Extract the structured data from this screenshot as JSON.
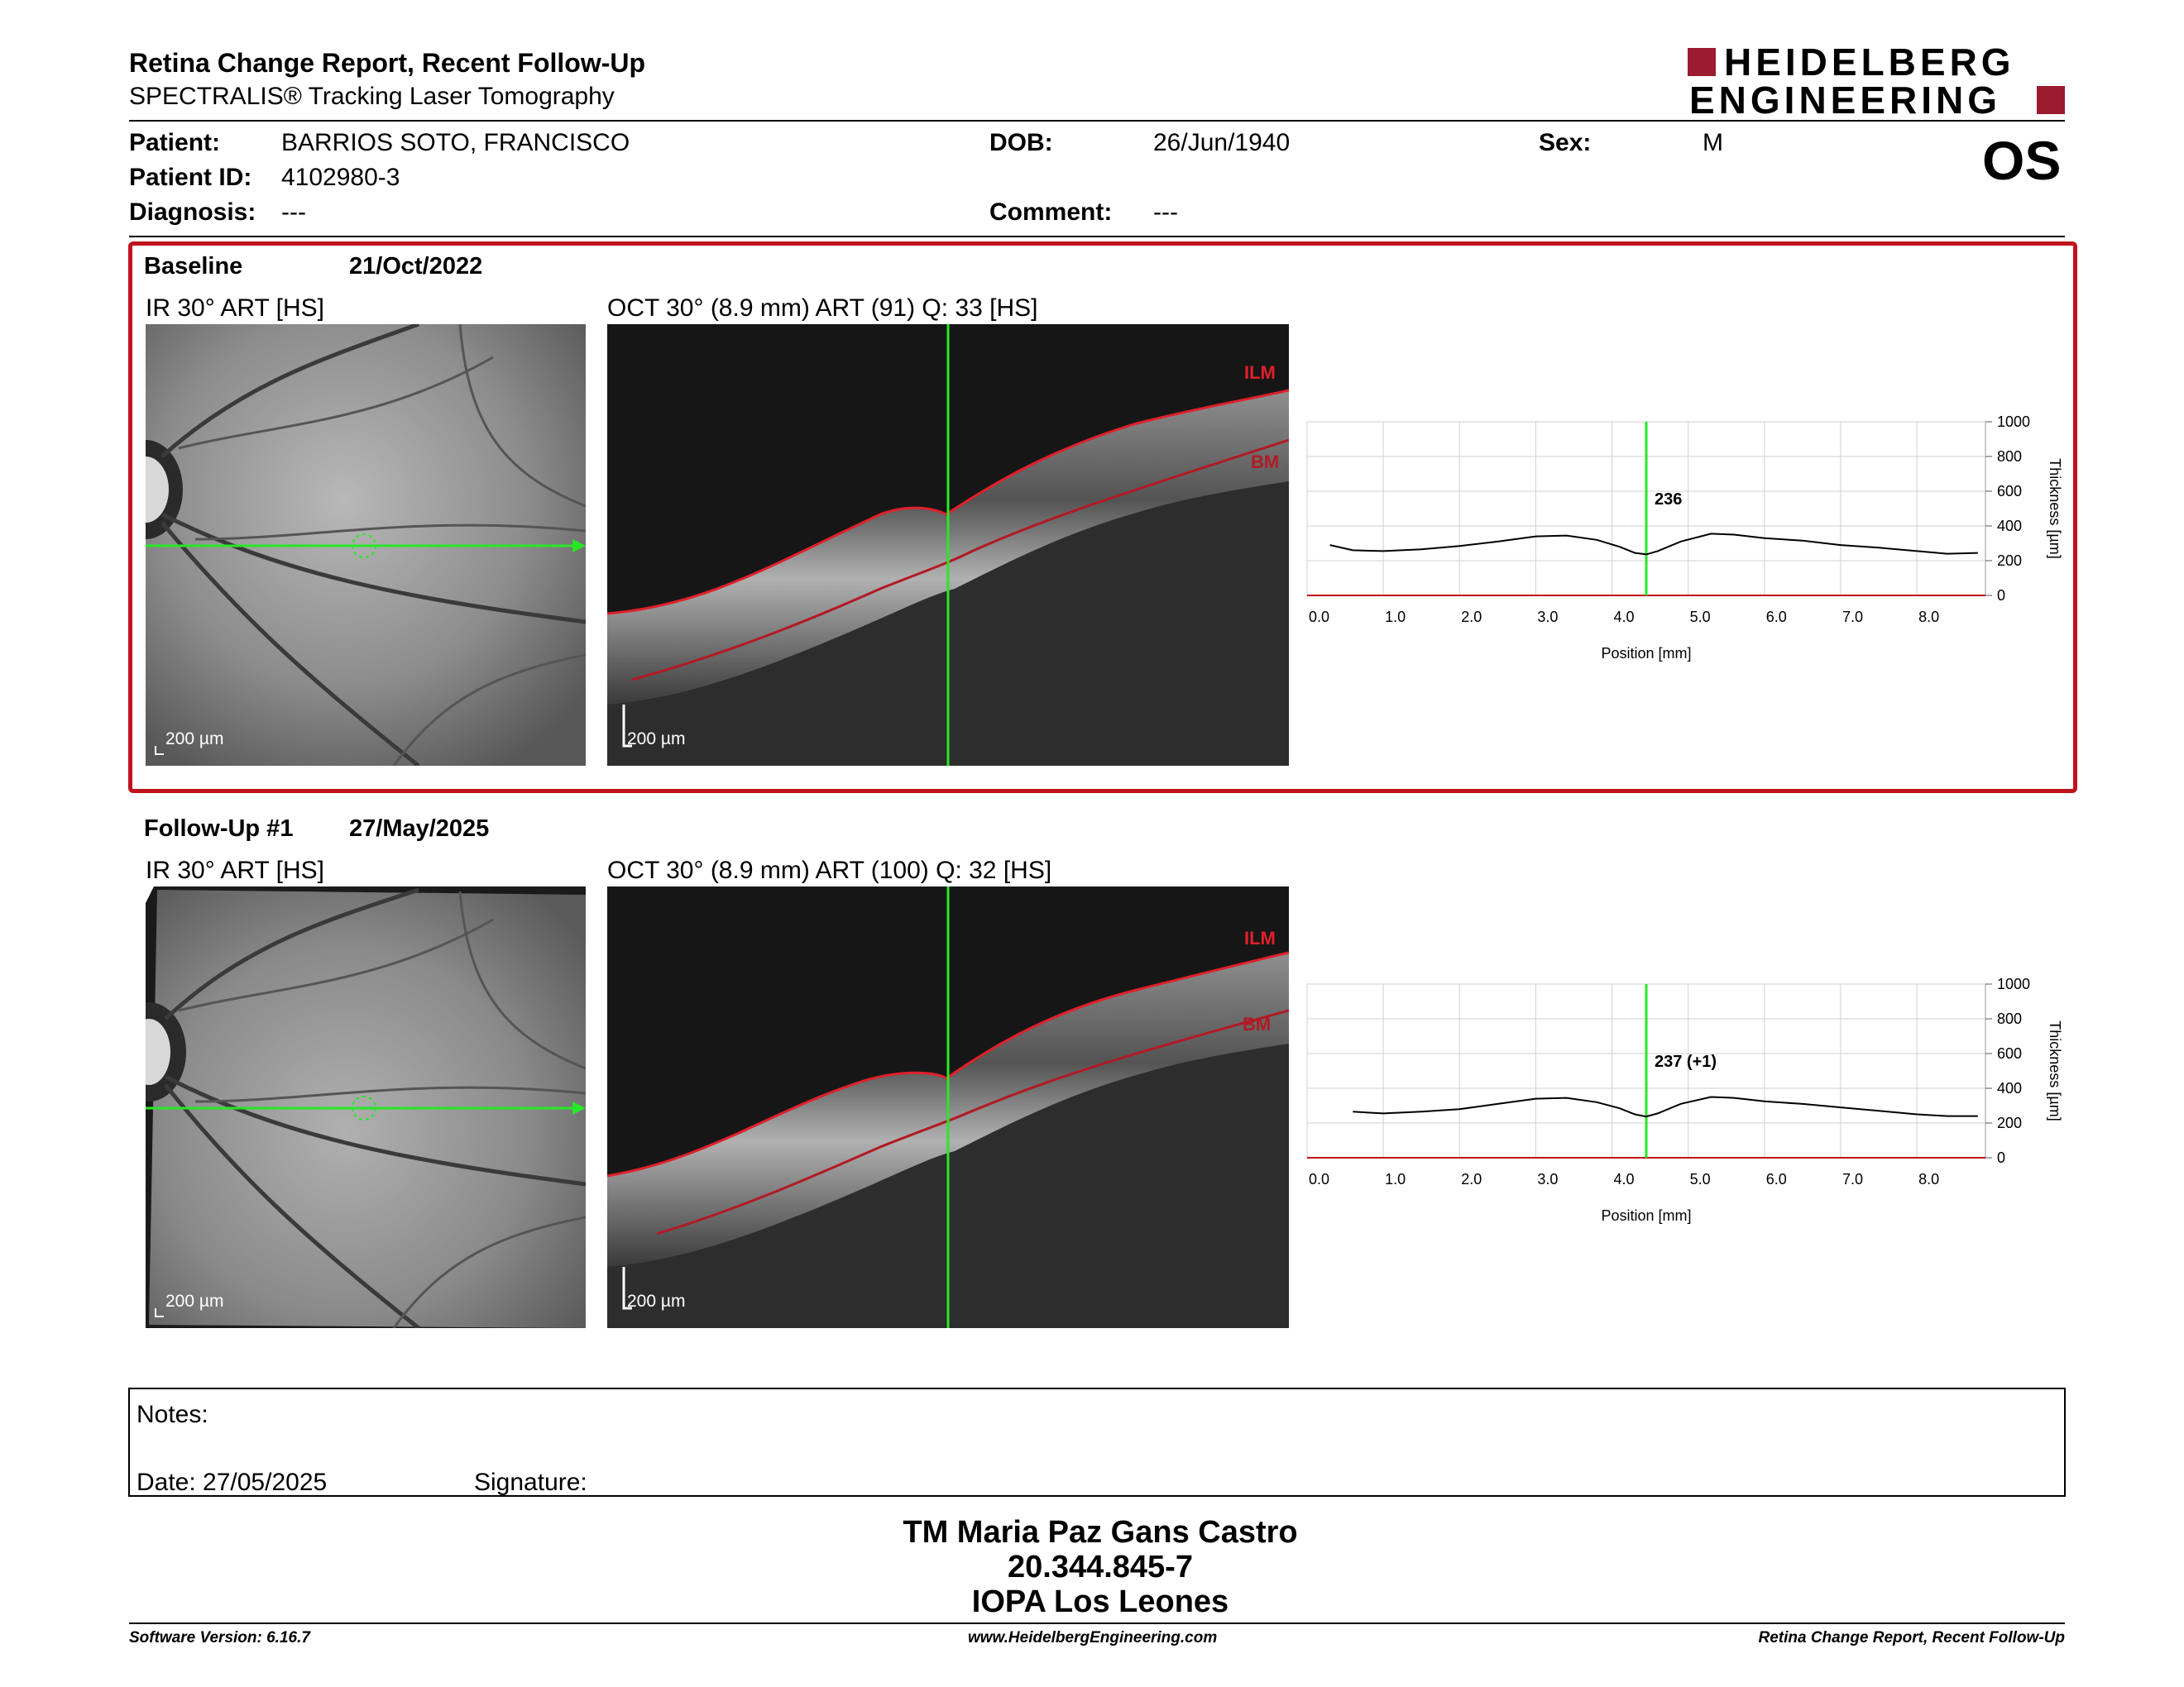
{
  "report": {
    "title": "Retina Change Report, Recent Follow-Up",
    "subtitle": "SPECTRALIS® Tracking Laser Tomography"
  },
  "logo": {
    "line1": "HEIDELBERG",
    "line2": "ENGINEERING",
    "accent": "#9b1b30"
  },
  "patient": {
    "patient_label": "Patient:",
    "patient_value": "BARRIOS SOTO, FRANCISCO",
    "id_label": "Patient ID:",
    "id_value": "4102980-3",
    "diagnosis_label": "Diagnosis:",
    "diagnosis_value": "---",
    "dob_label": "DOB:",
    "dob_value": "26/Jun/1940",
    "comment_label": "Comment:",
    "comment_value": "---",
    "sex_label": "Sex:",
    "sex_value": "M",
    "eye": "OS"
  },
  "baseline": {
    "heading": "Baseline",
    "date": "21/Oct/2022",
    "ir_caption": "IR 30° ART [HS]",
    "oct_caption": "OCT 30° (8.9 mm) ART (91) Q: 33 [HS]",
    "scale": "200 µm",
    "ilm": "ILM",
    "bm": "BM",
    "marker_value": "236"
  },
  "followup": {
    "heading": "Follow-Up #1",
    "date": "27/May/2025",
    "ir_caption": "IR 30° ART [HS]",
    "oct_caption": "OCT 30° (8.9 mm) ART (100) Q: 32 [HS]",
    "scale": "200 µm",
    "ilm": "ILM",
    "bm": "BM",
    "marker_value": "237 (+1)"
  },
  "chart_data": [
    {
      "type": "line",
      "xlabel": "Position [mm]",
      "ylabel": "Thickness [µm]",
      "xlim": [
        0,
        8.9
      ],
      "ylim": [
        0,
        1000
      ],
      "xticks": [
        "0.0",
        "1.0",
        "2.0",
        "3.0",
        "4.0",
        "5.0",
        "6.0",
        "7.0",
        "8.0"
      ],
      "yticks": [
        "0",
        "200",
        "400",
        "600",
        "800",
        "1000"
      ],
      "grid": true,
      "marker_x": 4.45,
      "marker_label": "236",
      "x": [
        0.3,
        0.6,
        1.0,
        1.5,
        2.0,
        2.5,
        3.0,
        3.4,
        3.8,
        4.1,
        4.3,
        4.45,
        4.6,
        4.9,
        5.3,
        5.6,
        6.0,
        6.5,
        7.0,
        7.5,
        8.0,
        8.4,
        8.8
      ],
      "y": [
        290,
        260,
        255,
        265,
        285,
        310,
        340,
        345,
        320,
        280,
        245,
        236,
        255,
        310,
        355,
        350,
        330,
        315,
        290,
        275,
        255,
        240,
        245
      ]
    },
    {
      "type": "line",
      "xlabel": "Position [mm]",
      "ylabel": "Thickness [µm]",
      "xlim": [
        0,
        8.9
      ],
      "ylim": [
        0,
        1000
      ],
      "xticks": [
        "0.0",
        "1.0",
        "2.0",
        "3.0",
        "4.0",
        "5.0",
        "6.0",
        "7.0",
        "8.0"
      ],
      "yticks": [
        "0",
        "200",
        "400",
        "600",
        "800",
        "1000"
      ],
      "grid": true,
      "marker_x": 4.45,
      "marker_label": "237 (+1)",
      "x": [
        0.6,
        1.0,
        1.5,
        2.0,
        2.5,
        3.0,
        3.4,
        3.8,
        4.1,
        4.3,
        4.45,
        4.6,
        4.9,
        5.3,
        5.6,
        6.0,
        6.5,
        7.0,
        7.5,
        8.0,
        8.4,
        8.8
      ],
      "y": [
        265,
        255,
        265,
        280,
        310,
        340,
        345,
        320,
        285,
        250,
        237,
        255,
        310,
        350,
        345,
        325,
        310,
        290,
        270,
        250,
        240,
        240
      ]
    }
  ],
  "notes": {
    "label": "Notes:",
    "date_label": "Date: 27/05/2025",
    "signature_label": "Signature:"
  },
  "signer": {
    "name": "TM Maria Paz Gans Castro",
    "id": "20.344.845-7",
    "org": "IOPA Los Leones"
  },
  "footer": {
    "left": "Software Version: 6.16.7",
    "center": "www.HeidelbergEngineering.com",
    "right": "Retina Change Report, Recent Follow-Up"
  }
}
